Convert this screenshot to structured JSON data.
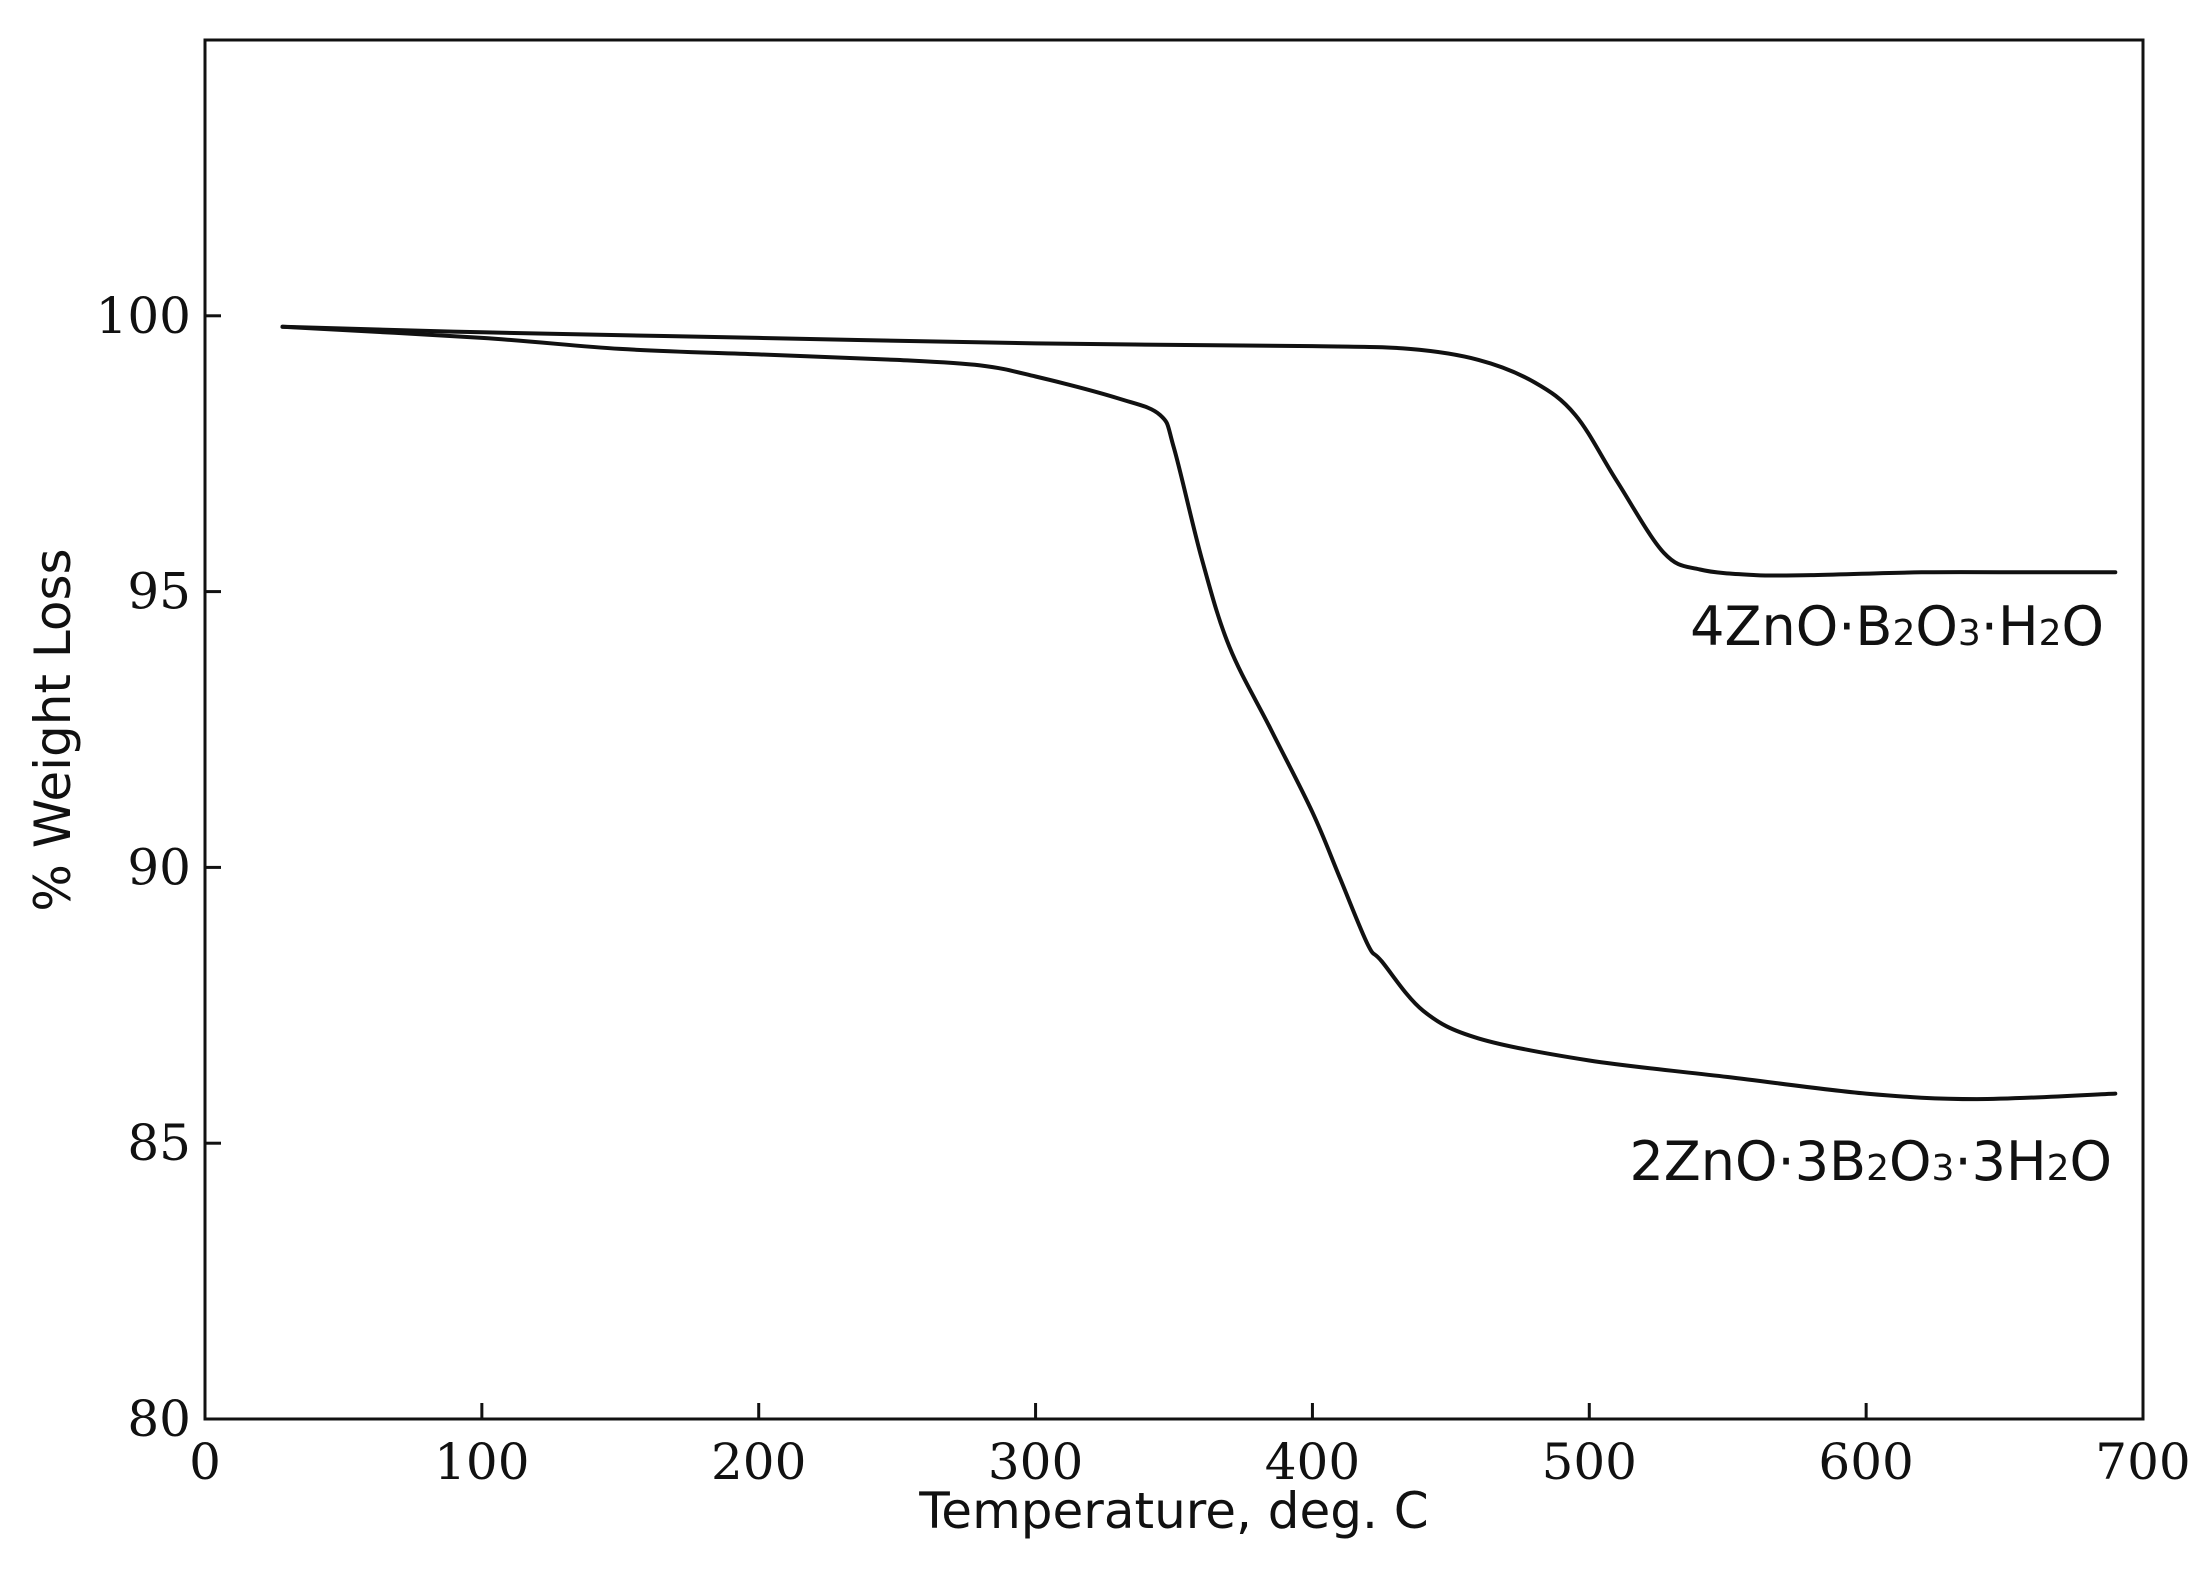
{
  "chart_data": {
    "type": "line",
    "title": "",
    "xlabel": "Temperature, deg. C",
    "ylabel": "% Weight Loss",
    "xlim": [
      0,
      700
    ],
    "ylim": [
      80,
      105
    ],
    "xticks": [
      0,
      100,
      200,
      300,
      400,
      500,
      600,
      700
    ],
    "yticks": [
      80,
      85,
      90,
      95,
      100
    ],
    "grid": false,
    "legend": "none",
    "line_color": "#111111",
    "series": [
      {
        "name": "4ZnO·B2O3·H2O",
        "label_parts": [
          {
            "t": "4ZnO·B",
            "sub": false
          },
          {
            "t": "2",
            "sub": true
          },
          {
            "t": "O",
            "sub": false
          },
          {
            "t": "3",
            "sub": true
          },
          {
            "t": "·H",
            "sub": false
          },
          {
            "t": "2",
            "sub": true
          },
          {
            "t": "O",
            "sub": false
          }
        ],
        "x": [
          28,
          100,
          200,
          300,
          400,
          435,
          460,
          480,
          495,
          510,
          527,
          540,
          560,
          580,
          620,
          660,
          690
        ],
        "y": [
          99.8,
          99.7,
          99.6,
          99.5,
          99.45,
          99.4,
          99.2,
          98.8,
          98.2,
          97.0,
          95.7,
          95.4,
          95.3,
          95.3,
          95.35,
          95.35,
          95.35
        ]
      },
      {
        "name": "2ZnO·3B2O3·3H2O",
        "label_parts": [
          {
            "t": "2ZnO·3B",
            "sub": false
          },
          {
            "t": "2",
            "sub": true
          },
          {
            "t": "O",
            "sub": false
          },
          {
            "t": "3",
            "sub": true
          },
          {
            "t": "·3H",
            "sub": false
          },
          {
            "t": "2",
            "sub": true
          },
          {
            "t": "O",
            "sub": false
          }
        ],
        "x": [
          28,
          100,
          150,
          200,
          250,
          280,
          300,
          330,
          345,
          350,
          360,
          370,
          385,
          400,
          410,
          420,
          425,
          440,
          460,
          500,
          550,
          600,
          640,
          690
        ],
        "y": [
          99.8,
          99.6,
          99.4,
          99.3,
          99.2,
          99.1,
          98.9,
          98.5,
          98.2,
          97.6,
          95.6,
          94.0,
          92.5,
          91.0,
          89.8,
          88.6,
          88.3,
          87.4,
          86.9,
          86.5,
          86.2,
          85.9,
          85.8,
          85.9
        ]
      }
    ]
  }
}
